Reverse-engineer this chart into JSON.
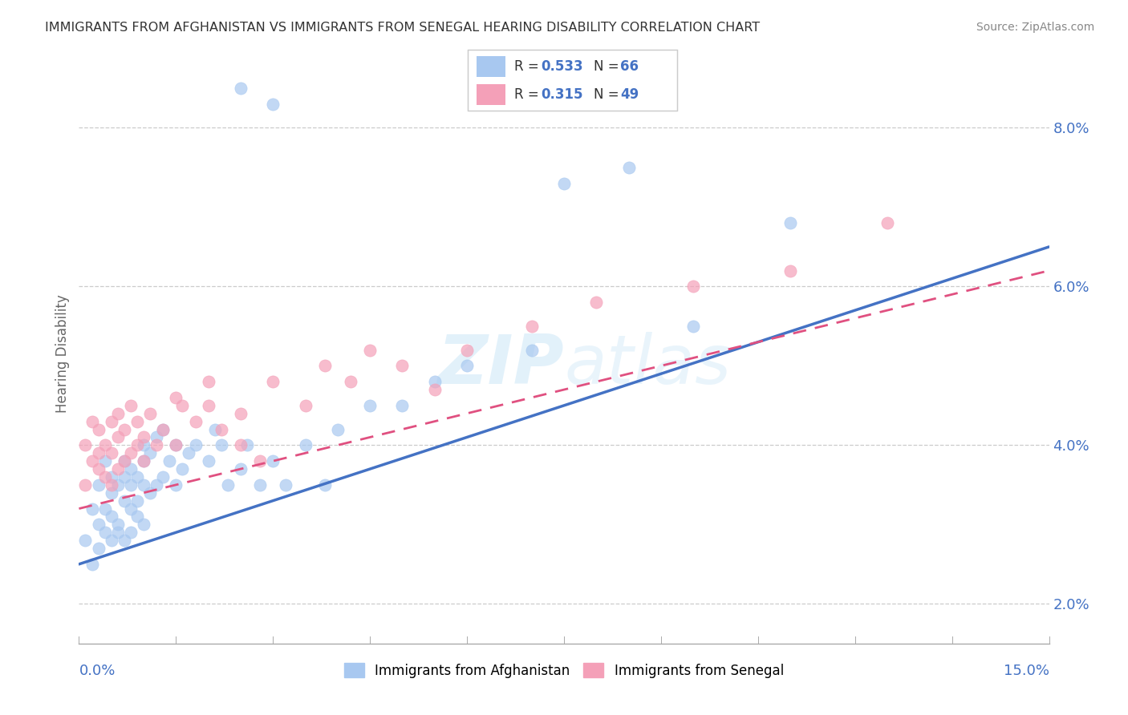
{
  "title": "IMMIGRANTS FROM AFGHANISTAN VS IMMIGRANTS FROM SENEGAL HEARING DISABILITY CORRELATION CHART",
  "source": "Source: ZipAtlas.com",
  "ylabel": "Hearing Disability",
  "xlim": [
    0.0,
    15.0
  ],
  "ylim": [
    1.5,
    8.8
  ],
  "yticks": [
    2.0,
    4.0,
    6.0,
    8.0
  ],
  "afghanistan_color": "#A8C8F0",
  "senegal_color": "#F4A0B8",
  "afghanistan_line_color": "#4472C4",
  "senegal_line_color": "#E05080",
  "r_afghanistan": 0.533,
  "n_afghanistan": 66,
  "r_senegal": 0.315,
  "n_senegal": 49,
  "legend_text_color": "#4472C4",
  "background_color": "#FFFFFF",
  "afghanistan_points_x": [
    0.1,
    0.2,
    0.2,
    0.3,
    0.3,
    0.3,
    0.4,
    0.4,
    0.4,
    0.5,
    0.5,
    0.5,
    0.5,
    0.6,
    0.6,
    0.6,
    0.7,
    0.7,
    0.7,
    0.7,
    0.8,
    0.8,
    0.8,
    0.8,
    0.9,
    0.9,
    0.9,
    1.0,
    1.0,
    1.0,
    1.0,
    1.1,
    1.1,
    1.2,
    1.2,
    1.3,
    1.3,
    1.4,
    1.5,
    1.5,
    1.6,
    1.7,
    1.8,
    2.0,
    2.1,
    2.2,
    2.3,
    2.5,
    2.6,
    2.8,
    3.0,
    3.2,
    3.5,
    3.8,
    4.0,
    4.5,
    5.0,
    5.5,
    6.0,
    7.0,
    7.5,
    8.5,
    9.5,
    11.0,
    3.0,
    2.5
  ],
  "afghanistan_points_y": [
    2.8,
    3.2,
    2.5,
    3.0,
    3.5,
    2.7,
    3.2,
    3.8,
    2.9,
    3.1,
    3.6,
    2.8,
    3.4,
    3.0,
    3.5,
    2.9,
    3.3,
    3.8,
    2.8,
    3.6,
    3.2,
    3.7,
    2.9,
    3.5,
    3.1,
    3.6,
    3.3,
    3.5,
    3.0,
    3.8,
    4.0,
    3.4,
    3.9,
    3.5,
    4.1,
    3.6,
    4.2,
    3.8,
    3.5,
    4.0,
    3.7,
    3.9,
    4.0,
    3.8,
    4.2,
    4.0,
    3.5,
    3.7,
    4.0,
    3.5,
    3.8,
    3.5,
    4.0,
    3.5,
    4.2,
    4.5,
    4.5,
    4.8,
    5.0,
    5.2,
    7.3,
    7.5,
    5.5,
    6.8,
    8.3,
    8.5
  ],
  "senegal_points_x": [
    0.1,
    0.1,
    0.2,
    0.2,
    0.3,
    0.3,
    0.3,
    0.4,
    0.4,
    0.5,
    0.5,
    0.5,
    0.6,
    0.6,
    0.6,
    0.7,
    0.7,
    0.8,
    0.8,
    0.9,
    0.9,
    1.0,
    1.0,
    1.1,
    1.2,
    1.3,
    1.5,
    1.6,
    1.8,
    2.0,
    2.2,
    2.5,
    2.8,
    3.0,
    3.5,
    4.2,
    5.0,
    5.5,
    6.0,
    7.0,
    8.0,
    9.5,
    11.0,
    12.5,
    1.5,
    2.0,
    2.5,
    3.8,
    4.5
  ],
  "senegal_points_y": [
    3.5,
    4.0,
    3.8,
    4.3,
    3.7,
    4.2,
    3.9,
    4.0,
    3.6,
    3.9,
    4.3,
    3.5,
    4.1,
    3.7,
    4.4,
    3.8,
    4.2,
    3.9,
    4.5,
    4.0,
    4.3,
    4.1,
    3.8,
    4.4,
    4.0,
    4.2,
    4.0,
    4.5,
    4.3,
    4.5,
    4.2,
    4.0,
    3.8,
    4.8,
    4.5,
    4.8,
    5.0,
    4.7,
    5.2,
    5.5,
    5.8,
    6.0,
    6.2,
    6.8,
    4.6,
    4.8,
    4.4,
    5.0,
    5.2
  ]
}
